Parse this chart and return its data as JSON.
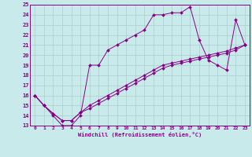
{
  "xlabel": "Windchill (Refroidissement éolien,°C)",
  "bg_color": "#c8eaea",
  "line_color": "#880088",
  "grid_color": "#aacccc",
  "xlim": [
    -0.5,
    23.5
  ],
  "ylim": [
    13,
    25
  ],
  "xticks": [
    0,
    1,
    2,
    3,
    4,
    5,
    6,
    7,
    8,
    9,
    10,
    11,
    12,
    13,
    14,
    15,
    16,
    17,
    18,
    19,
    20,
    21,
    22,
    23
  ],
  "yticks": [
    13,
    14,
    15,
    16,
    17,
    18,
    19,
    20,
    21,
    22,
    23,
    24,
    25
  ],
  "line1_x": [
    0,
    1,
    2,
    3,
    4,
    5,
    6,
    7,
    8,
    9,
    10,
    11,
    12,
    13,
    14,
    15,
    16,
    17,
    18,
    19,
    20,
    21,
    22,
    23
  ],
  "line1_y": [
    16,
    15,
    14,
    13,
    13,
    14,
    19,
    19,
    20.5,
    21,
    21.5,
    22,
    22.5,
    24,
    24,
    24.2,
    24.2,
    24.8,
    21.5,
    19.5,
    19,
    18.5,
    23.5,
    21
  ],
  "line2_x": [
    0,
    1,
    2,
    3,
    4,
    5,
    6,
    7,
    8,
    9,
    10,
    11,
    12,
    13,
    14,
    15,
    16,
    17,
    18,
    19,
    20,
    21,
    22,
    23
  ],
  "line2_y": [
    16,
    15,
    14.2,
    13.5,
    13.5,
    14.3,
    14.7,
    15.2,
    15.7,
    16.2,
    16.7,
    17.2,
    17.7,
    18.2,
    18.7,
    19.0,
    19.2,
    19.4,
    19.6,
    19.8,
    20.0,
    20.2,
    20.5,
    21
  ],
  "line3_x": [
    0,
    1,
    2,
    3,
    4,
    5,
    6,
    7,
    8,
    9,
    10,
    11,
    12,
    13,
    14,
    15,
    16,
    17,
    18,
    19,
    20,
    21,
    22,
    23
  ],
  "line3_y": [
    16,
    15,
    14.2,
    13.5,
    13.5,
    14.3,
    15.0,
    15.5,
    16.0,
    16.5,
    17.0,
    17.5,
    18.0,
    18.5,
    19.0,
    19.2,
    19.4,
    19.6,
    19.8,
    20.0,
    20.2,
    20.4,
    20.7,
    21
  ]
}
